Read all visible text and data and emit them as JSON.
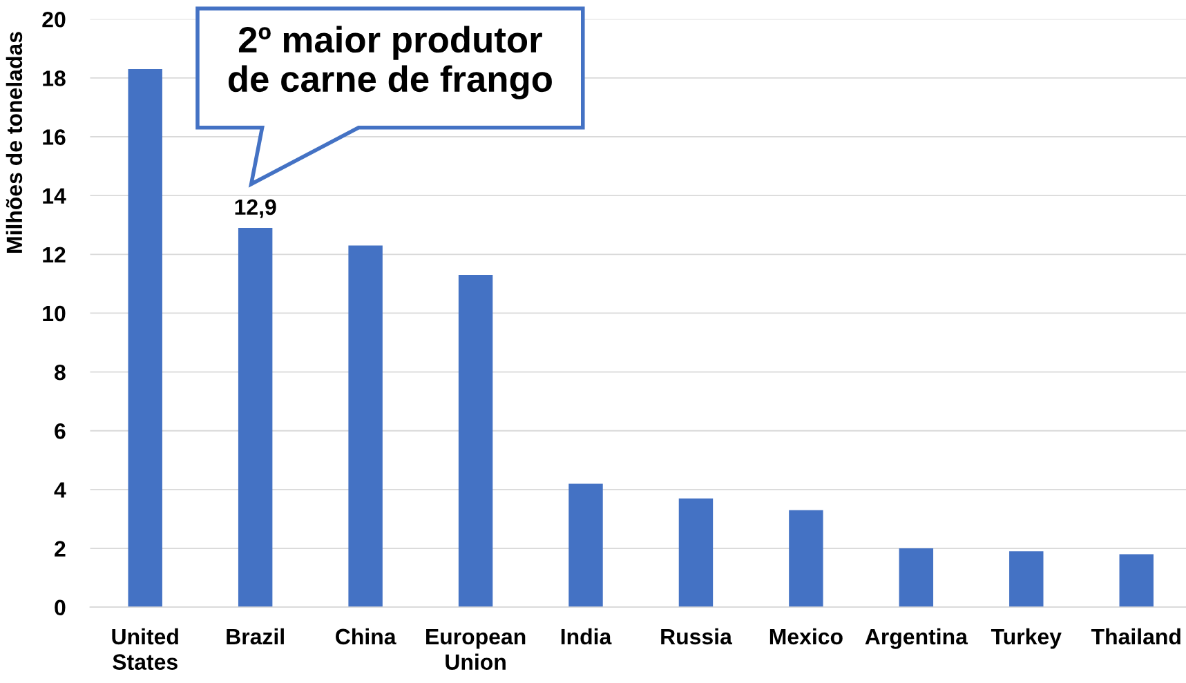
{
  "chart_data": {
    "type": "bar",
    "ylabel": "Milhões de toneladas",
    "categories": [
      "United\nStates",
      "Brazil",
      "China",
      "European\nUnion",
      "India",
      "Russia",
      "Mexico",
      "Argentina",
      "Turkey",
      "Thailand"
    ],
    "values": [
      18.3,
      12.9,
      12.3,
      11.3,
      4.2,
      3.7,
      3.3,
      2.0,
      1.9,
      1.8
    ],
    "color": "#4472c4",
    "value_labels": [
      null,
      "12,9",
      null,
      null,
      null,
      null,
      null,
      null,
      null,
      null
    ],
    "ylim": [
      0,
      20
    ],
    "yticks": [
      0,
      2,
      4,
      6,
      8,
      10,
      12,
      14,
      16,
      18,
      20
    ],
    "grid": "y",
    "annotations": [
      "2º maior produtor\nde carne de frango"
    ]
  }
}
